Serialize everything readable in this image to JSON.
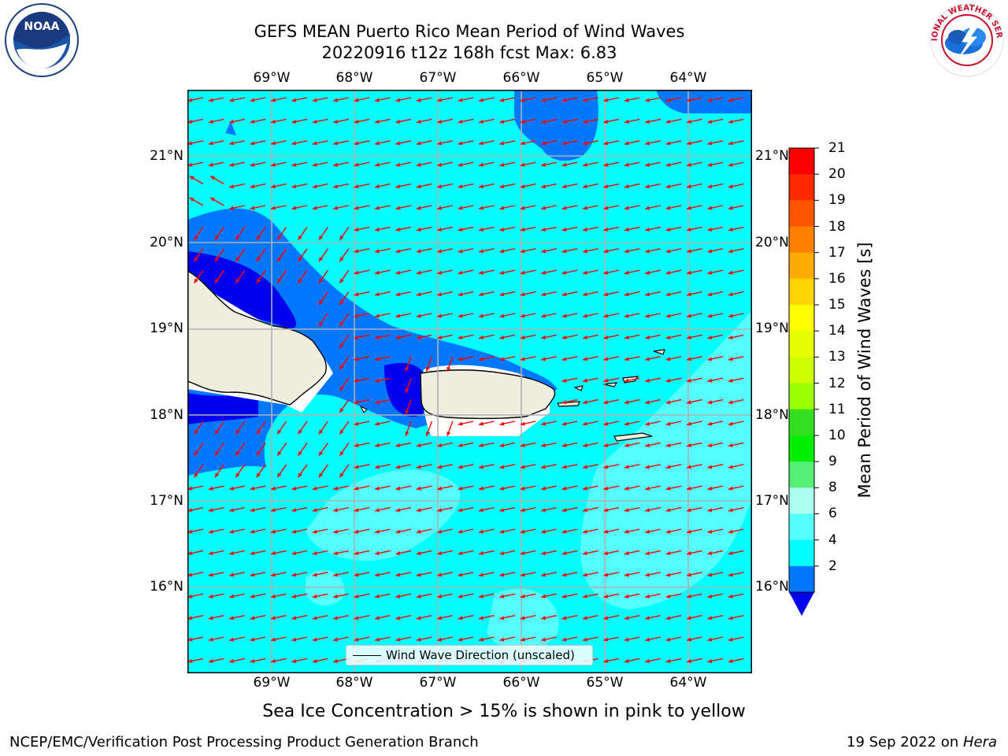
{
  "title": {
    "line1": "GEFS MEAN Puerto Rico Mean Period of Wind Waves",
    "line2": "20220916 t12z 168h fcst   Max: 6.83"
  },
  "map": {
    "lon_ticks": [
      "69°W",
      "68°W",
      "67°W",
      "66°W",
      "65°W",
      "64°W"
    ],
    "lat_ticks": [
      "21°N",
      "20°N",
      "19°N",
      "18°N",
      "17°N",
      "16°N"
    ],
    "legend_label": "Wind Wave Direction (unscaled)",
    "arrow_color": "#ff0000",
    "land_color": "#efeede"
  },
  "colorbar": {
    "title": "Mean Period of Wind Waves [s]",
    "labels": [
      "21",
      "20",
      "19",
      "18",
      "17",
      "16",
      "15",
      "14",
      "13",
      "12",
      "11",
      "10",
      "9",
      "8",
      "6",
      "4",
      "2"
    ],
    "colors": [
      "#ff0000",
      "#ff2a00",
      "#ff5500",
      "#ff8000",
      "#ffaa00",
      "#ffd400",
      "#ffff00",
      "#e6ff00",
      "#ccff00",
      "#99ff00",
      "#33dd22",
      "#00ee00",
      "#55ee77",
      "#aaffee",
      "#55ffff",
      "#00ffff",
      "#0077ff"
    ],
    "extend_color": "#0000ee"
  },
  "note": "Sea Ice Concentration > 15% is shown in pink to yellow",
  "footer": {
    "left": "NCEP/EMC/Verification Post Processing Product Generation Branch",
    "date": "19 Sep 2022 on ",
    "machine": "Hera"
  },
  "logos": {
    "noaa_text": "NOAA",
    "nws_text": "NATIONAL WEATHER SERVICE"
  }
}
